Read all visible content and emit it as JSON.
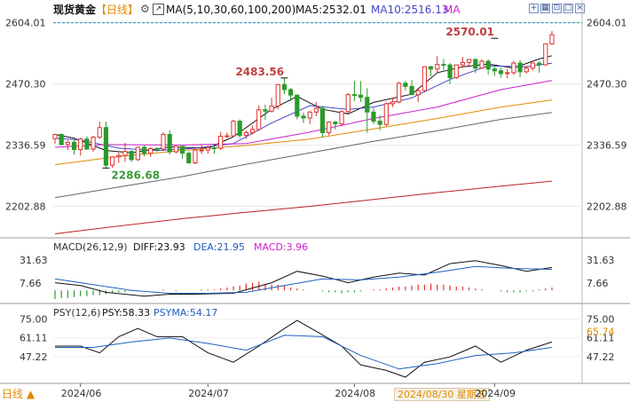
{
  "header": {
    "symbol": "现货黄金",
    "period": "【日线】",
    "ma_params": "MA(5,10,30,60,100,200)",
    "ma5": "MA5:2532.01",
    "ma10": "MA10:2516.13",
    "ma_tail": "MA"
  },
  "macd_header": {
    "params": "MACD(26,12,9)",
    "diff": "DIFF:23.93",
    "dea": "DEA:21.95",
    "macd": "MACD:3.96"
  },
  "psy_header": {
    "params": "PSY(12,6)",
    "psy": "PSY:58.33",
    "psyma": "PSYMA:54.17"
  },
  "footer": {
    "period_button": "日线 ▲",
    "cursor_date": "2024/08/30 星期五"
  },
  "colors": {
    "up": "#e03030",
    "down": "#2a9a2a",
    "ma5": "#111111",
    "ma10": "#4444cc",
    "ma30": "#cc22cc",
    "ma60": "#e08a00",
    "ma100": "#666666",
    "ma200": "#bb2222",
    "macd_purple": "#cc22cc",
    "psyma_blue": "#1f5fbf",
    "current_price": "#1f8fbf"
  },
  "chart_data": [
    {
      "type": "candlestick",
      "y_ticks": [
        "2604.01",
        "2470.30",
        "2336.59",
        "2202.88"
      ],
      "x_ticks": [
        "2024/06",
        "2024/07",
        "2024/08",
        "2024/09"
      ],
      "ylim": [
        2140,
        2615
      ],
      "annotations": [
        {
          "text": "2570.01",
          "x": "2024/09/02",
          "y": 2570.01
        },
        {
          "text": "2483.56",
          "x": "2024/07/17",
          "y": 2483.56
        },
        {
          "text": "2286.68",
          "x": "2024/06/07",
          "y": 2286.68
        }
      ],
      "current_price": 2604.01,
      "candles": [
        [
          "2024/05/28",
          2351,
          2362,
          2340,
          2360
        ],
        [
          "2024/05/29",
          2360,
          2362,
          2336,
          2338
        ],
        [
          "2024/05/30",
          2338,
          2347,
          2326,
          2343
        ],
        [
          "2024/05/31",
          2343,
          2350,
          2316,
          2327
        ],
        [
          "2024/06/03",
          2327,
          2353,
          2314,
          2350
        ],
        [
          "2024/06/04",
          2350,
          2356,
          2327,
          2328
        ],
        [
          "2024/06/05",
          2328,
          2357,
          2322,
          2354
        ],
        [
          "2024/06/06",
          2354,
          2388,
          2350,
          2375
        ],
        [
          "2024/06/07",
          2375,
          2388,
          2286.68,
          2293
        ],
        [
          "2024/06/10",
          2293,
          2312,
          2287,
          2311
        ],
        [
          "2024/06/11",
          2311,
          2320,
          2298,
          2314
        ],
        [
          "2024/06/12",
          2314,
          2342,
          2300,
          2323
        ],
        [
          "2024/06/13",
          2323,
          2325,
          2300,
          2305
        ],
        [
          "2024/06/14",
          2305,
          2333,
          2302,
          2332
        ],
        [
          "2024/06/17",
          2332,
          2336,
          2312,
          2319
        ],
        [
          "2024/06/18",
          2319,
          2333,
          2311,
          2329
        ],
        [
          "2024/06/19",
          2329,
          2332,
          2322,
          2328
        ],
        [
          "2024/06/20",
          2328,
          2365,
          2324,
          2360
        ],
        [
          "2024/06/21",
          2360,
          2369,
          2316,
          2322
        ],
        [
          "2024/06/24",
          2322,
          2335,
          2319,
          2334
        ],
        [
          "2024/06/25",
          2334,
          2335,
          2307,
          2319
        ],
        [
          "2024/06/26",
          2319,
          2323,
          2296,
          2298
        ],
        [
          "2024/06/27",
          2298,
          2328,
          2295,
          2326
        ],
        [
          "2024/06/28",
          2326,
          2338,
          2317,
          2326
        ],
        [
          "2024/07/01",
          2326,
          2335,
          2318,
          2331
        ],
        [
          "2024/07/02",
          2331,
          2335,
          2318,
          2330
        ],
        [
          "2024/07/03",
          2330,
          2366,
          2326,
          2356
        ],
        [
          "2024/07/04",
          2356,
          2364,
          2353,
          2357
        ],
        [
          "2024/07/05",
          2357,
          2392,
          2355,
          2389
        ],
        [
          "2024/07/08",
          2389,
          2393,
          2353,
          2358
        ],
        [
          "2024/07/09",
          2358,
          2369,
          2350,
          2364
        ],
        [
          "2024/07/10",
          2364,
          2379,
          2360,
          2371
        ],
        [
          "2024/07/11",
          2371,
          2424,
          2368,
          2414
        ],
        [
          "2024/07/12",
          2414,
          2425,
          2392,
          2411
        ],
        [
          "2024/07/15",
          2411,
          2440,
          2408,
          2422
        ],
        [
          "2024/07/16",
          2422,
          2469,
          2415,
          2469
        ],
        [
          "2024/07/17",
          2469,
          2483.56,
          2448,
          2458
        ],
        [
          "2024/07/18",
          2458,
          2462,
          2433,
          2446
        ],
        [
          "2024/07/19",
          2446,
          2447,
          2393,
          2400
        ],
        [
          "2024/07/22",
          2400,
          2408,
          2385,
          2396
        ],
        [
          "2024/07/23",
          2396,
          2411,
          2382,
          2409
        ],
        [
          "2024/07/24",
          2409,
          2431,
          2400,
          2417
        ],
        [
          "2024/07/25",
          2417,
          2422,
          2353,
          2364
        ],
        [
          "2024/07/26",
          2364,
          2389,
          2358,
          2387
        ],
        [
          "2024/07/29",
          2387,
          2390,
          2371,
          2383
        ],
        [
          "2024/07/30",
          2383,
          2413,
          2378,
          2410
        ],
        [
          "2024/07/31",
          2410,
          2451,
          2406,
          2447
        ],
        [
          "2024/08/01",
          2447,
          2477,
          2433,
          2446
        ],
        [
          "2024/08/02",
          2446,
          2477,
          2431,
          2441
        ],
        [
          "2024/08/05",
          2441,
          2461,
          2364,
          2409
        ],
        [
          "2024/08/06",
          2409,
          2418,
          2383,
          2389
        ],
        [
          "2024/08/07",
          2389,
          2402,
          2369,
          2382
        ],
        [
          "2024/08/08",
          2382,
          2430,
          2378,
          2427
        ],
        [
          "2024/08/09",
          2427,
          2440,
          2420,
          2431
        ],
        [
          "2024/08/12",
          2431,
          2475,
          2428,
          2472
        ],
        [
          "2024/08/13",
          2472,
          2477,
          2456,
          2465
        ],
        [
          "2024/08/14",
          2465,
          2479,
          2447,
          2447
        ],
        [
          "2024/08/15",
          2447,
          2462,
          2431,
          2456
        ],
        [
          "2024/08/16",
          2456,
          2509,
          2454,
          2508
        ],
        [
          "2024/08/19",
          2508,
          2510,
          2487,
          2503
        ],
        [
          "2024/08/20",
          2503,
          2531,
          2495,
          2513
        ],
        [
          "2024/08/21",
          2513,
          2525,
          2501,
          2512
        ],
        [
          "2024/08/22",
          2512,
          2516,
          2470,
          2484
        ],
        [
          "2024/08/23",
          2484,
          2512,
          2481,
          2512
        ],
        [
          "2024/08/26",
          2512,
          2529,
          2506,
          2517
        ],
        [
          "2024/08/27",
          2517,
          2524,
          2507,
          2524
        ],
        [
          "2024/08/28",
          2524,
          2525,
          2494,
          2505
        ],
        [
          "2024/08/29",
          2505,
          2524,
          2503,
          2520
        ],
        [
          "2024/08/30",
          2520,
          2524,
          2491,
          2503
        ],
        [
          "2024/09/02",
          2503,
          2508,
          2488,
          2499
        ],
        [
          "2024/09/03",
          2499,
          2506,
          2484,
          2493
        ],
        [
          "2024/09/04",
          2493,
          2503,
          2483,
          2495
        ],
        [
          "2024/09/05",
          2495,
          2521,
          2490,
          2516
        ],
        [
          "2024/09/06",
          2516,
          2523,
          2485,
          2497
        ],
        [
          "2024/09/09",
          2497,
          2510,
          2493,
          2505
        ],
        [
          "2024/09/10",
          2505,
          2517,
          2500,
          2516
        ],
        [
          "2024/09/11",
          2516,
          2520,
          2495,
          2512
        ],
        [
          "2024/09/12",
          2512,
          2558,
          2510,
          2558
        ],
        [
          "2024/09/13",
          2558,
          2586,
          2556,
          2578
        ]
      ],
      "ma": {
        "MA5": [
          [
            0,
            2360
          ],
          [
            3,
            2352
          ],
          [
            8,
            2325
          ],
          [
            12,
            2320
          ],
          [
            18,
            2333
          ],
          [
            24,
            2330
          ],
          [
            28,
            2355
          ],
          [
            34,
            2415
          ],
          [
            38,
            2443
          ],
          [
            42,
            2415
          ],
          [
            46,
            2405
          ],
          [
            50,
            2430
          ],
          [
            56,
            2448
          ],
          [
            60,
            2495
          ],
          [
            64,
            2508
          ],
          [
            68,
            2514
          ],
          [
            72,
            2505
          ],
          [
            76,
            2525
          ],
          [
            78,
            2532
          ]
        ],
        "MA10": [
          [
            0,
            2352
          ],
          [
            4,
            2348
          ],
          [
            10,
            2330
          ],
          [
            16,
            2325
          ],
          [
            22,
            2330
          ],
          [
            28,
            2340
          ],
          [
            34,
            2385
          ],
          [
            40,
            2423
          ],
          [
            46,
            2415
          ],
          [
            50,
            2420
          ],
          [
            56,
            2440
          ],
          [
            62,
            2480
          ],
          [
            68,
            2510
          ],
          [
            74,
            2508
          ],
          [
            78,
            2516
          ]
        ],
        "MA30": [
          [
            0,
            2332
          ],
          [
            8,
            2338
          ],
          [
            20,
            2337
          ],
          [
            30,
            2340
          ],
          [
            40,
            2365
          ],
          [
            50,
            2395
          ],
          [
            60,
            2420
          ],
          [
            70,
            2458
          ],
          [
            78,
            2478
          ]
        ],
        "MA60": [
          [
            0,
            2294
          ],
          [
            10,
            2312
          ],
          [
            20,
            2325
          ],
          [
            30,
            2336
          ],
          [
            40,
            2350
          ],
          [
            50,
            2372
          ],
          [
            60,
            2395
          ],
          [
            70,
            2420
          ],
          [
            78,
            2435
          ]
        ],
        "MA100": [
          [
            0,
            2222
          ],
          [
            10,
            2245
          ],
          [
            20,
            2268
          ],
          [
            30,
            2295
          ],
          [
            40,
            2320
          ],
          [
            50,
            2345
          ],
          [
            60,
            2368
          ],
          [
            70,
            2393
          ],
          [
            78,
            2408
          ]
        ],
        "MA200": [
          [
            0,
            2143
          ],
          [
            10,
            2160
          ],
          [
            20,
            2176
          ],
          [
            30,
            2190
          ],
          [
            40,
            2203
          ],
          [
            50,
            2218
          ],
          [
            60,
            2233
          ],
          [
            70,
            2247
          ],
          [
            78,
            2258
          ]
        ]
      }
    },
    {
      "type": "macd",
      "y_ticks": [
        "31.63",
        "7.66"
      ],
      "ylim": [
        -10,
        42
      ],
      "diff": [
        [
          0,
          8
        ],
        [
          4,
          5
        ],
        [
          8,
          -2
        ],
        [
          14,
          -6
        ],
        [
          18,
          -4
        ],
        [
          22,
          -4
        ],
        [
          28,
          -3
        ],
        [
          34,
          8
        ],
        [
          38,
          20
        ],
        [
          42,
          15
        ],
        [
          46,
          8
        ],
        [
          50,
          14
        ],
        [
          54,
          18
        ],
        [
          58,
          16
        ],
        [
          62,
          28
        ],
        [
          66,
          31
        ],
        [
          70,
          26
        ],
        [
          74,
          20
        ],
        [
          78,
          24
        ]
      ],
      "dea": [
        [
          0,
          12
        ],
        [
          6,
          6
        ],
        [
          12,
          0
        ],
        [
          18,
          -3
        ],
        [
          24,
          -3
        ],
        [
          30,
          -2
        ],
        [
          36,
          5
        ],
        [
          42,
          12
        ],
        [
          48,
          11
        ],
        [
          54,
          14
        ],
        [
          60,
          19
        ],
        [
          66,
          25
        ],
        [
          72,
          23
        ],
        [
          78,
          22
        ]
      ],
      "histogram": [
        -9,
        -8,
        -8,
        -7,
        -6,
        -6,
        -5,
        -5,
        -4,
        -3,
        -2,
        -2,
        -1,
        -1,
        0,
        0,
        0,
        1,
        0,
        -1,
        0,
        0,
        0,
        1,
        1,
        1,
        2,
        3,
        4,
        5,
        7,
        8,
        9,
        7,
        6,
        6,
        5,
        3,
        2,
        1,
        0,
        0,
        -1,
        -2,
        -2,
        -3,
        -2,
        -2,
        -1,
        0,
        1,
        1,
        2,
        3,
        4,
        4,
        5,
        6,
        6,
        7,
        6,
        6,
        5,
        4,
        4,
        3,
        2,
        1,
        0,
        0,
        -1,
        -2,
        -2,
        -2,
        -1,
        -1,
        1,
        2,
        3
      ]
    },
    {
      "type": "psy",
      "y_ticks": [
        "75.00",
        "61.11",
        "47.22"
      ],
      "ylim": [
        30,
        80
      ],
      "last_value_label": "65.74",
      "psy": [
        [
          0,
          55
        ],
        [
          4,
          55
        ],
        [
          7,
          50
        ],
        [
          10,
          62
        ],
        [
          13,
          68
        ],
        [
          16,
          62
        ],
        [
          20,
          62
        ],
        [
          24,
          50
        ],
        [
          28,
          43
        ],
        [
          32,
          55
        ],
        [
          36,
          68
        ],
        [
          38,
          74
        ],
        [
          41,
          66
        ],
        [
          45,
          55
        ],
        [
          48,
          41
        ],
        [
          52,
          37
        ],
        [
          55,
          32
        ],
        [
          58,
          43
        ],
        [
          62,
          47
        ],
        [
          66,
          55
        ],
        [
          70,
          43
        ],
        [
          74,
          52
        ],
        [
          78,
          58
        ]
      ],
      "psyma": [
        [
          0,
          54
        ],
        [
          6,
          54
        ],
        [
          12,
          58
        ],
        [
          18,
          61
        ],
        [
          24,
          57
        ],
        [
          30,
          52
        ],
        [
          36,
          63
        ],
        [
          42,
          62
        ],
        [
          48,
          48
        ],
        [
          54,
          38
        ],
        [
          60,
          42
        ],
        [
          66,
          48
        ],
        [
          72,
          50
        ],
        [
          78,
          54
        ]
      ]
    }
  ]
}
